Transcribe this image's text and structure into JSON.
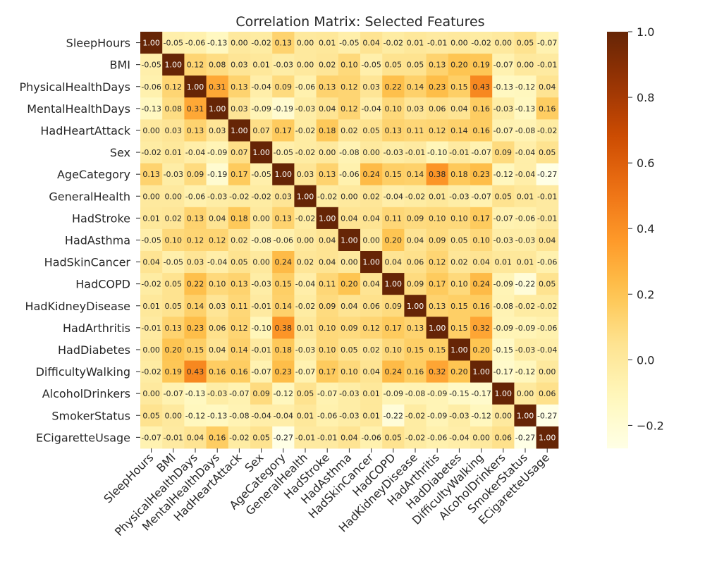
{
  "chart_data": {
    "type": "heatmap",
    "title": "Correlation Matrix: Selected Features",
    "labels": [
      "SleepHours",
      "BMI",
      "PhysicalHealthDays",
      "MentalHealthDays",
      "HadHeartAttack",
      "Sex",
      "AgeCategory",
      "GeneralHealth",
      "HadStroke",
      "HadAsthma",
      "HadSkinCancer",
      "HadCOPD",
      "HadKidneyDisease",
      "HadArthritis",
      "HadDiabetes",
      "DifficultyWalking",
      "AlcoholDrinkers",
      "SmokerStatus",
      "ECigaretteUsage"
    ],
    "matrix": [
      [
        1.0,
        -0.05,
        -0.06,
        -0.13,
        0.0,
        -0.02,
        0.13,
        0.0,
        0.01,
        -0.05,
        0.04,
        -0.02,
        0.01,
        -0.01,
        -0.0,
        -0.02,
        -0.0,
        0.05,
        -0.07
      ],
      [
        -0.05,
        1.0,
        0.12,
        0.08,
        0.03,
        0.01,
        -0.03,
        0.0,
        0.02,
        0.1,
        -0.05,
        0.05,
        0.05,
        0.13,
        0.2,
        0.19,
        -0.07,
        0.0,
        -0.01
      ],
      [
        -0.06,
        0.12,
        1.0,
        0.31,
        0.13,
        -0.04,
        0.09,
        -0.06,
        0.13,
        0.12,
        0.03,
        0.22,
        0.14,
        0.23,
        0.15,
        0.43,
        -0.13,
        -0.12,
        0.04
      ],
      [
        -0.13,
        0.08,
        0.31,
        1.0,
        0.03,
        -0.09,
        -0.19,
        -0.03,
        0.04,
        0.12,
        -0.04,
        0.1,
        0.03,
        0.06,
        0.04,
        0.16,
        -0.03,
        -0.13,
        0.16
      ],
      [
        0.0,
        0.03,
        0.13,
        0.03,
        1.0,
        0.07,
        0.17,
        -0.02,
        0.18,
        0.02,
        0.05,
        0.13,
        0.11,
        0.12,
        0.14,
        0.16,
        -0.07,
        -0.08,
        -0.02
      ],
      [
        -0.02,
        0.01,
        -0.04,
        -0.09,
        0.07,
        1.0,
        -0.05,
        -0.02,
        0.0,
        -0.08,
        -0.0,
        -0.03,
        -0.01,
        -0.1,
        -0.01,
        -0.07,
        0.09,
        -0.04,
        0.05
      ],
      [
        0.13,
        -0.03,
        0.09,
        -0.19,
        0.17,
        -0.05,
        1.0,
        0.03,
        0.13,
        -0.06,
        0.24,
        0.15,
        0.14,
        0.38,
        0.18,
        0.23,
        -0.12,
        -0.04,
        -0.27
      ],
      [
        0.0,
        0.0,
        -0.06,
        -0.03,
        -0.02,
        -0.02,
        0.03,
        1.0,
        -0.02,
        -0.0,
        0.02,
        -0.04,
        -0.02,
        0.01,
        -0.03,
        -0.07,
        0.05,
        0.01,
        -0.01
      ],
      [
        0.01,
        0.02,
        0.13,
        0.04,
        0.18,
        0.0,
        0.13,
        -0.02,
        1.0,
        0.04,
        0.04,
        0.11,
        0.09,
        0.1,
        0.1,
        0.17,
        -0.07,
        -0.06,
        -0.01
      ],
      [
        -0.05,
        0.1,
        0.12,
        0.12,
        0.02,
        -0.08,
        -0.06,
        -0.0,
        0.04,
        1.0,
        -0.0,
        0.2,
        0.04,
        0.09,
        0.05,
        0.1,
        -0.03,
        -0.03,
        0.04
      ],
      [
        0.04,
        -0.05,
        0.03,
        -0.04,
        0.05,
        -0.0,
        0.24,
        0.02,
        0.04,
        -0.0,
        1.0,
        0.04,
        0.06,
        0.12,
        0.02,
        0.04,
        0.01,
        0.01,
        -0.06
      ],
      [
        -0.02,
        0.05,
        0.22,
        0.1,
        0.13,
        -0.03,
        0.15,
        -0.04,
        0.11,
        0.2,
        0.04,
        1.0,
        0.09,
        0.17,
        0.1,
        0.24,
        -0.09,
        -0.22,
        0.05
      ],
      [
        0.01,
        0.05,
        0.14,
        0.03,
        0.11,
        -0.01,
        0.14,
        -0.02,
        0.09,
        0.04,
        0.06,
        0.09,
        1.0,
        0.13,
        0.15,
        0.16,
        -0.08,
        -0.02,
        -0.02
      ],
      [
        -0.01,
        0.13,
        0.23,
        0.06,
        0.12,
        -0.1,
        0.38,
        0.01,
        0.1,
        0.09,
        0.12,
        0.17,
        0.13,
        1.0,
        0.15,
        0.32,
        -0.09,
        -0.09,
        -0.06
      ],
      [
        -0.0,
        0.2,
        0.15,
        0.04,
        0.14,
        -0.01,
        0.18,
        -0.03,
        0.1,
        0.05,
        0.02,
        0.1,
        0.15,
        0.15,
        1.0,
        0.2,
        -0.15,
        -0.03,
        -0.04
      ],
      [
        -0.02,
        0.19,
        0.43,
        0.16,
        0.16,
        -0.07,
        0.23,
        -0.07,
        0.17,
        0.1,
        0.04,
        0.24,
        0.16,
        0.32,
        0.2,
        1.0,
        -0.17,
        -0.12,
        -0.0
      ],
      [
        -0.0,
        -0.07,
        -0.13,
        -0.03,
        -0.07,
        0.09,
        -0.12,
        0.05,
        -0.07,
        -0.03,
        0.01,
        -0.09,
        -0.08,
        -0.09,
        -0.15,
        -0.17,
        1.0,
        0.0,
        0.06
      ],
      [
        0.05,
        0.0,
        -0.12,
        -0.13,
        -0.08,
        -0.04,
        -0.04,
        0.01,
        -0.06,
        -0.03,
        0.01,
        -0.22,
        -0.02,
        -0.09,
        -0.03,
        -0.12,
        0.0,
        1.0,
        -0.27
      ],
      [
        -0.07,
        -0.01,
        0.04,
        0.16,
        -0.02,
        0.05,
        -0.27,
        -0.01,
        -0.01,
        0.04,
        -0.06,
        0.05,
        -0.02,
        -0.06,
        -0.04,
        -0.0,
        0.06,
        -0.27,
        1.0
      ]
    ],
    "colormap": "YlOrBr",
    "vmin": -0.27,
    "vmax": 1.0,
    "colorbar_ticks": [
      "−0.2",
      "0.0",
      "0.2",
      "0.4",
      "0.6",
      "0.8",
      "1.0"
    ],
    "colorbar_tick_values": [
      -0.2,
      0.0,
      0.2,
      0.4,
      0.6,
      0.8,
      1.0
    ]
  }
}
